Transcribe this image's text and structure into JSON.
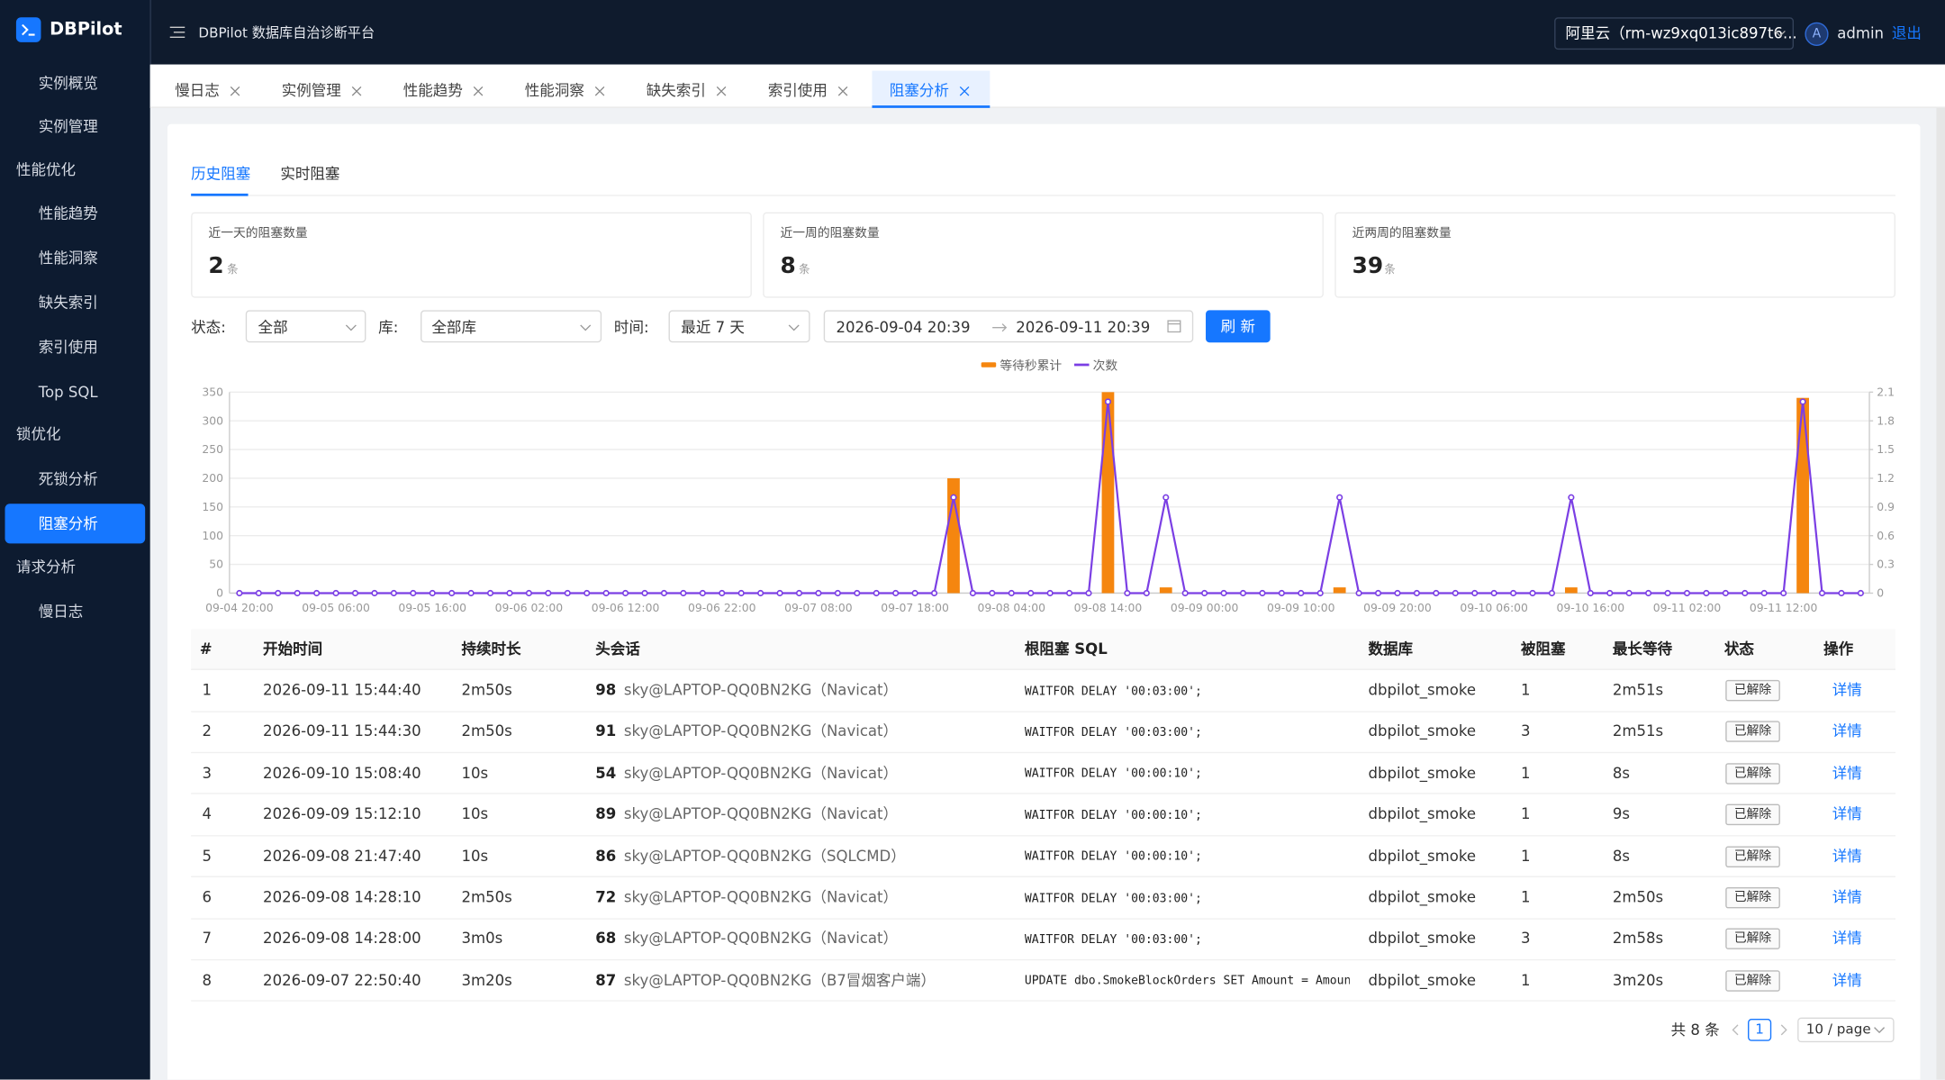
{
  "header": {
    "logo": "DBPilot",
    "title": "DBPilot 数据库自治诊断平台",
    "instance": "阿里云（rm-wz9xq013ic897t6...",
    "avatar": "A",
    "user": "admin",
    "logout": "退出"
  },
  "sidebar": [
    "实例概览",
    "实例管理",
    "性能优化",
    "性能趋势",
    "性能洞察",
    "缺失索引",
    "索引使用",
    "Top SQL",
    "锁优化",
    "死锁分析",
    "阻塞分析",
    "请求分析",
    "慢日志"
  ],
  "tabs": [
    "慢日志",
    "实例管理",
    "性能趋势",
    "性能洞察",
    "缺失索引",
    "索引使用",
    "阻塞分析"
  ],
  "subtabs": [
    "历史阻塞",
    "实时阻塞"
  ],
  "stats": [
    {
      "label": "近一天的阻塞数量",
      "value": 2,
      "unit": "条"
    },
    {
      "label": "近一周的阻塞数量",
      "value": 8,
      "unit": "条"
    },
    {
      "label": "近两周的阻塞数量",
      "value": 39,
      "unit": "条"
    }
  ],
  "filters": {
    "status_label": "状态:",
    "status": "全部",
    "db_label": "库:",
    "db": "全部库",
    "time_label": "时间:",
    "time": "最近 7 天",
    "start": "2026-09-04 20:39",
    "end": "2026-09-11 20:39",
    "refresh": "刷 新"
  },
  "chart_data": {
    "type": "combo",
    "legend": "top",
    "grid": true,
    "categories": [
      "09-04 20:00",
      null,
      null,
      null,
      null,
      "09-05 06:00",
      null,
      null,
      null,
      null,
      "09-05 16:00",
      null,
      null,
      null,
      null,
      "09-06 02:00",
      null,
      null,
      null,
      null,
      "09-06 12:00",
      null,
      null,
      null,
      null,
      "09-06 22:00",
      null,
      null,
      null,
      null,
      "09-07 08:00",
      null,
      null,
      null,
      null,
      "09-07 18:00",
      null,
      null,
      null,
      null,
      "09-08 04:00",
      null,
      null,
      null,
      null,
      "09-08 14:00",
      null,
      null,
      null,
      null,
      "09-09 00:00",
      null,
      null,
      null,
      null,
      "09-09 10:00",
      null,
      null,
      null,
      null,
      "09-09 20:00",
      null,
      null,
      null,
      null,
      "09-10 06:00",
      null,
      null,
      null,
      null,
      "09-10 16:00",
      null,
      null,
      null,
      null,
      "09-11 02:00",
      null,
      null,
      null,
      null,
      "09-11 12:00",
      null,
      null,
      null,
      null
    ],
    "series": [
      {
        "name": "等待秒累计",
        "type": "bar",
        "color": "#f5860f",
        "values": [
          0,
          0,
          0,
          0,
          0,
          0,
          0,
          0,
          0,
          0,
          0,
          0,
          0,
          0,
          0,
          0,
          0,
          0,
          0,
          0,
          0,
          0,
          0,
          0,
          0,
          0,
          0,
          0,
          0,
          0,
          0,
          0,
          0,
          0,
          0,
          0,
          0,
          200,
          0,
          0,
          0,
          0,
          0,
          0,
          0,
          350,
          0,
          0,
          10,
          0,
          0,
          0,
          0,
          0,
          0,
          0,
          0,
          10,
          0,
          0,
          0,
          0,
          0,
          0,
          0,
          0,
          0,
          0,
          0,
          10,
          0,
          0,
          0,
          0,
          0,
          0,
          0,
          0,
          0,
          0,
          0,
          340,
          0,
          0,
          0
        ]
      },
      {
        "name": "次数",
        "type": "line",
        "color": "#7b3fe4",
        "axis": "y2",
        "values": [
          0,
          0,
          0,
          0,
          0,
          0,
          0,
          0,
          0,
          0,
          0,
          0,
          0,
          0,
          0,
          0,
          0,
          0,
          0,
          0,
          0,
          0,
          0,
          0,
          0,
          0,
          0,
          0,
          0,
          0,
          0,
          0,
          0,
          0,
          0,
          0,
          0,
          1,
          0,
          0,
          0,
          0,
          0,
          0,
          0,
          2,
          0,
          0,
          1,
          0,
          0,
          0,
          0,
          0,
          0,
          0,
          0,
          1,
          0,
          0,
          0,
          0,
          0,
          0,
          0,
          0,
          0,
          0,
          0,
          1,
          0,
          0,
          0,
          0,
          0,
          0,
          0,
          0,
          0,
          0,
          0,
          2,
          0,
          0,
          0
        ]
      }
    ],
    "ylim": [
      0,
      350
    ],
    "yticks": [
      0,
      50,
      100,
      150,
      200,
      250,
      300,
      350
    ],
    "y2lim": [
      0,
      2.1
    ],
    "y2ticks": [
      0,
      0.3,
      0.6,
      0.9,
      1.2,
      1.5,
      1.8,
      2.1
    ]
  },
  "table": {
    "columns": [
      "#",
      "开始时间",
      "持续时长",
      "头会话",
      "根阻塞 SQL",
      "数据库",
      "被阻塞",
      "最长等待",
      "状态",
      "操作"
    ],
    "rows": [
      [
        1,
        "2026-09-11 15:44:40",
        "2m50s",
        98,
        "sky@LAPTOP-QQ0BN2KG（Navicat）",
        "WAITFOR DELAY '00:03:00';",
        "dbpilot_smoke",
        1,
        "2m51s",
        "已解除",
        "详情"
      ],
      [
        2,
        "2026-09-11 15:44:30",
        "2m50s",
        91,
        "sky@LAPTOP-QQ0BN2KG（Navicat）",
        "WAITFOR DELAY '00:03:00';",
        "dbpilot_smoke",
        3,
        "2m51s",
        "已解除",
        "详情"
      ],
      [
        3,
        "2026-09-10 15:08:40",
        "10s",
        54,
        "sky@LAPTOP-QQ0BN2KG（Navicat）",
        "WAITFOR DELAY '00:00:10';",
        "dbpilot_smoke",
        1,
        "8s",
        "已解除",
        "详情"
      ],
      [
        4,
        "2026-09-09 15:12:10",
        "10s",
        89,
        "sky@LAPTOP-QQ0BN2KG（Navicat）",
        "WAITFOR DELAY '00:00:10';",
        "dbpilot_smoke",
        1,
        "9s",
        "已解除",
        "详情"
      ],
      [
        5,
        "2026-09-08 21:47:40",
        "10s",
        86,
        "sky@LAPTOP-QQ0BN2KG（SQLCMD）",
        "WAITFOR DELAY '00:00:10';",
        "dbpilot_smoke",
        1,
        "8s",
        "已解除",
        "详情"
      ],
      [
        6,
        "2026-09-08 14:28:10",
        "2m50s",
        72,
        "sky@LAPTOP-QQ0BN2KG（Navicat）",
        "WAITFOR DELAY '00:03:00';",
        "dbpilot_smoke",
        1,
        "2m50s",
        "已解除",
        "详情"
      ],
      [
        7,
        "2026-09-08 14:28:00",
        "3m0s",
        68,
        "sky@LAPTOP-QQ0BN2KG（Navicat）",
        "WAITFOR DELAY '00:03:00';",
        "dbpilot_smoke",
        3,
        "2m58s",
        "已解除",
        "详情"
      ],
      [
        8,
        "2026-09-07 22:50:40",
        "3m20s",
        87,
        "sky@LAPTOP-QQ0BN2KG（B7冒烟客户端）",
        "UPDATE dbo.SmokeBlockOrders SET Amount = Amount…",
        "dbpilot_smoke",
        1,
        "3m20s",
        "已解除",
        "详情"
      ]
    ]
  },
  "pagination": {
    "total": "共 8 条",
    "page": 1,
    "page_size": "10 / page"
  }
}
